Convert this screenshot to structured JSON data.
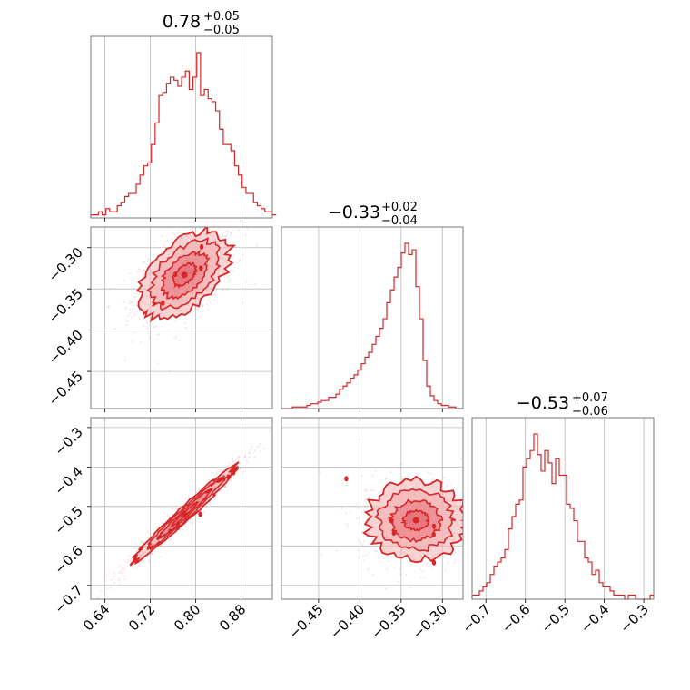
{
  "chart_data": {
    "type": "corner",
    "color": "#d62728",
    "fill_light": "#f4b3b5",
    "fill_mid": "#e8717a",
    "parameters": [
      {
        "id": "p0",
        "title_median": "0.78",
        "title_plus": "+0.05",
        "title_minus": "−0.05",
        "range": [
          0.615,
          0.935
        ],
        "ticks": [
          0.64,
          0.72,
          0.8,
          0.88
        ],
        "tick_labels": [
          "0.64",
          "0.72",
          "0.80",
          "0.88"
        ],
        "grid_lines": [
          0.64,
          0.72,
          0.8,
          0.88
        ],
        "hist_edges_start": 0.615,
        "hist_bin_width": 0.00667,
        "hist_counts": [
          1,
          1,
          2,
          1,
          3,
          2,
          2,
          4,
          5,
          7,
          8,
          8,
          11,
          14,
          17,
          18,
          24,
          31,
          40,
          41,
          44,
          46,
          45,
          43,
          46,
          48,
          42,
          46,
          54,
          40,
          42,
          39,
          38,
          35,
          29,
          24,
          24,
          22,
          17,
          14,
          10,
          8,
          8,
          5,
          4,
          3,
          2,
          2,
          1,
          1
        ]
      },
      {
        "id": "p1",
        "title_median": "−0.33",
        "title_plus": "+0.02",
        "title_minus": "−0.04",
        "range": [
          -0.495,
          -0.275
        ],
        "ticks": [
          -0.45,
          -0.4,
          -0.35,
          -0.3
        ],
        "tick_labels": [
          "−0.45",
          "−0.40",
          "−0.35",
          "−0.30"
        ],
        "grid_lines": [
          -0.45,
          -0.4,
          -0.35,
          -0.3
        ],
        "hist_edges_start": -0.495,
        "hist_bin_width": 0.0044,
        "hist_counts": [
          0,
          0,
          0,
          1,
          1,
          1,
          1,
          2,
          3,
          3,
          4,
          5,
          5,
          7,
          7,
          9,
          12,
          14,
          16,
          19,
          21,
          24,
          28,
          32,
          35,
          40,
          45,
          50,
          56,
          66,
          74,
          82,
          88,
          97,
          103,
          96,
          99,
          76,
          56,
          30,
          14,
          8,
          5,
          3,
          2,
          2,
          1,
          1,
          0,
          0
        ]
      },
      {
        "id": "p2",
        "title_median": "−0.53",
        "title_plus": "+0.07",
        "title_minus": "−0.06",
        "range": [
          -0.735,
          -0.275
        ],
        "ticks": [
          -0.7,
          -0.6,
          -0.5,
          -0.4,
          -0.3
        ],
        "tick_labels": [
          "−0.7",
          "−0.6",
          "−0.5",
          "−0.4",
          "−0.3"
        ],
        "grid_lines": [
          -0.7,
          -0.6,
          -0.5,
          -0.4,
          -0.3
        ],
        "hist_edges_start": -0.735,
        "hist_bin_width": 0.0092,
        "hist_counts": [
          1,
          1,
          2,
          3,
          4,
          6,
          8,
          9,
          10,
          12,
          17,
          20,
          23,
          24,
          32,
          34,
          36,
          40,
          35,
          31,
          36,
          33,
          28,
          34,
          30,
          30,
          23,
          22,
          19,
          14,
          14,
          10,
          9,
          6,
          7,
          4,
          3,
          3,
          2,
          1,
          1,
          1,
          0,
          1,
          1,
          0,
          0,
          0,
          0,
          1
        ]
      }
    ],
    "pairs": [
      {
        "x": "p0",
        "y": "p1",
        "mean": [
          0.78,
          -0.333
        ],
        "sd": [
          0.04,
          0.027
        ],
        "corr": 0.5,
        "n_points": 700
      },
      {
        "x": "p0",
        "y": "p2",
        "mean": [
          0.78,
          -0.52
        ],
        "sd": [
          0.045,
          0.06
        ],
        "corr": 0.98,
        "n_points": 700
      },
      {
        "x": "p1",
        "y": "p2",
        "mean": [
          -0.332,
          -0.535
        ],
        "sd": [
          0.03,
          0.05
        ],
        "corr": 0.0,
        "n_points": 700
      }
    ]
  }
}
